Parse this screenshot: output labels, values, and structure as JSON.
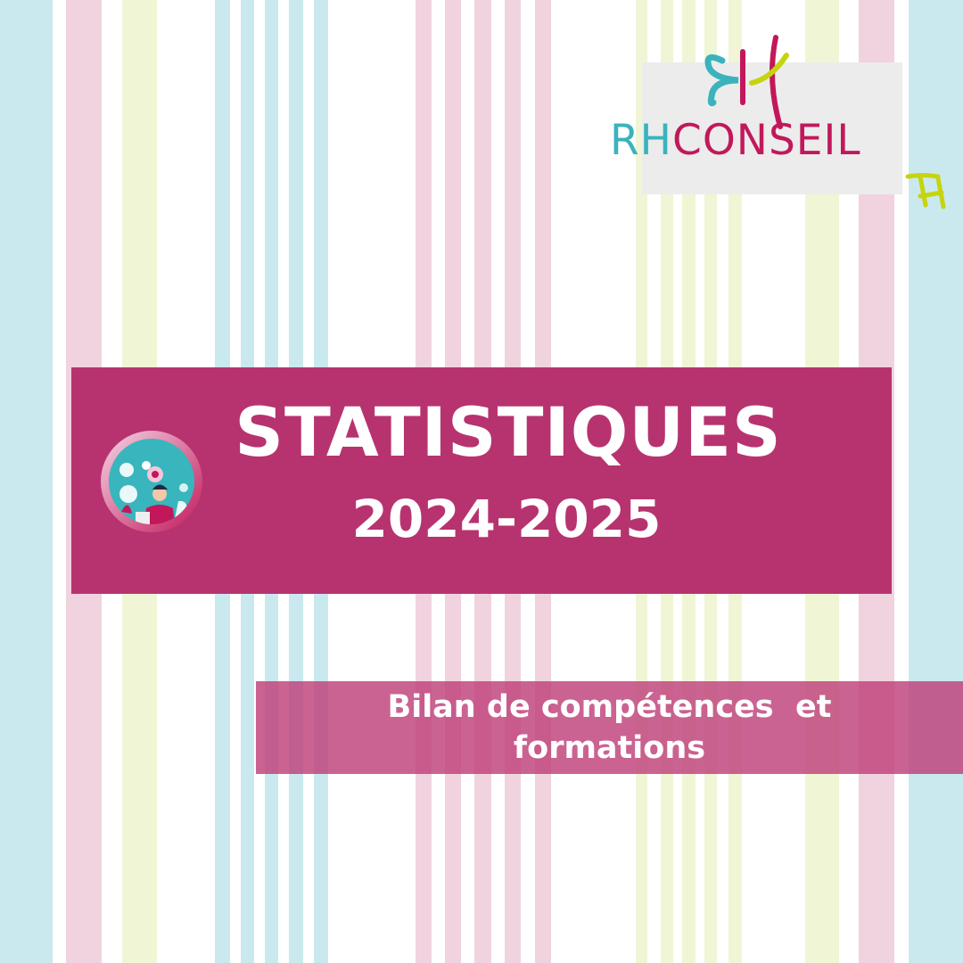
{
  "logo": {
    "part1": "RH",
    "part2": "CONSEIL"
  },
  "banner": {
    "title": "STATISTIQUES",
    "year": "2024-2025"
  },
  "subtitle": {
    "line1": "Bilan de compétences  et",
    "line2": "formations"
  },
  "colors": {
    "banner": "#b7336f",
    "subtitle_box": "#be417a",
    "stripe_blue": "#c9e9ef",
    "stripe_pink": "#f1d3df",
    "stripe_yellow": "#f0f5d5",
    "logo_teal": "#3ab3bd",
    "logo_magenta": "#c2185b"
  },
  "icons": {
    "badge": "person-thinking-illustration"
  }
}
